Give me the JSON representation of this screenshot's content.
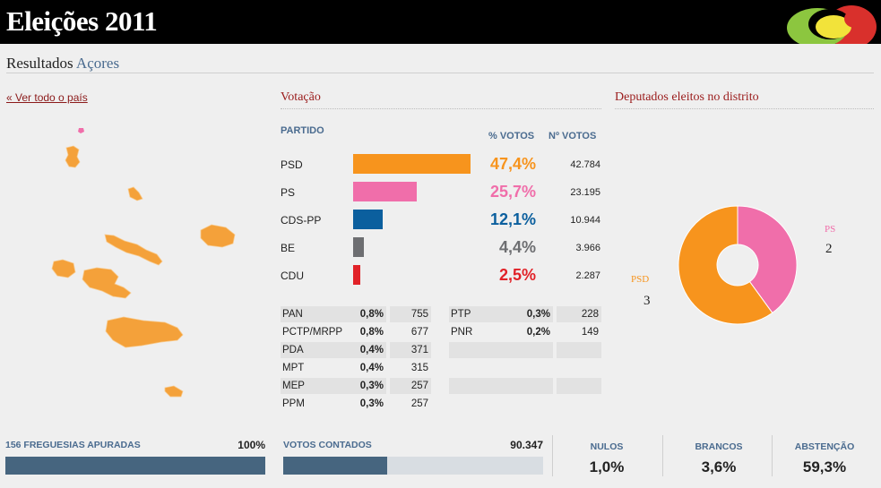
{
  "header": {
    "title": "Eleições 2011",
    "logo_icon": "elections-logo-icon"
  },
  "subheader": {
    "label": "Resultados",
    "region": "Açores"
  },
  "map": {
    "back_link": "« Ver todo o país",
    "fill_color": "#f4a13a"
  },
  "votacao": {
    "title": "Votação",
    "col_party": "PARTIDO",
    "col_pct": "% VOTOS",
    "col_votes": "Nº VOTOS",
    "parties": [
      {
        "name": "PSD",
        "pct": "47,4%",
        "share": 47.4,
        "votes": "42.784",
        "color": "#f7941d"
      },
      {
        "name": "PS",
        "pct": "25,7%",
        "share": 25.7,
        "votes": "23.195",
        "color": "#f06eaa"
      },
      {
        "name": "CDS-PP",
        "pct": "12,1%",
        "share": 12.1,
        "votes": "10.944",
        "color": "#0b5f9e"
      },
      {
        "name": "BE",
        "pct": "4,4%",
        "share": 4.4,
        "votes": "3.966",
        "color": "#6d6e71"
      },
      {
        "name": "CDU",
        "pct": "2,5%",
        "share": 2.5,
        "votes": "2.287",
        "color": "#e12228"
      }
    ],
    "minor_left": [
      {
        "name": "PAN",
        "pct": "0,8%",
        "votes": "755"
      },
      {
        "name": "PCTP/MRPP",
        "pct": "0,8%",
        "votes": "677"
      },
      {
        "name": "PDA",
        "pct": "0,4%",
        "votes": "371"
      },
      {
        "name": "MPT",
        "pct": "0,4%",
        "votes": "315"
      },
      {
        "name": "MEP",
        "pct": "0,3%",
        "votes": "257"
      },
      {
        "name": "PPM",
        "pct": "0,3%",
        "votes": "257"
      }
    ],
    "minor_right": [
      {
        "name": "PTP",
        "pct": "0,3%",
        "votes": "228"
      },
      {
        "name": "PNR",
        "pct": "0,2%",
        "votes": "149"
      }
    ]
  },
  "deputados": {
    "title": "Deputados eleitos no distrito",
    "seats": [
      {
        "party": "PSD",
        "seats": "3",
        "count": 3,
        "color": "#f7941d"
      },
      {
        "party": "PS",
        "seats": "2",
        "count": 2,
        "color": "#f06eaa"
      }
    ]
  },
  "footer": {
    "freguesias_label": "156 FREGUESIAS APURADAS",
    "freguesias_value": "100%",
    "freguesias_progress": 100,
    "votos_label": "VOTOS CONTADOS",
    "votos_value": "90.347",
    "votos_progress": 40,
    "nulos_label": "NULOS",
    "nulos_value": "1,0%",
    "brancos_label": "BRANCOS",
    "brancos_value": "3,6%",
    "abstencao_label": "ABSTENÇÃO",
    "abstencao_value": "59,3%"
  }
}
